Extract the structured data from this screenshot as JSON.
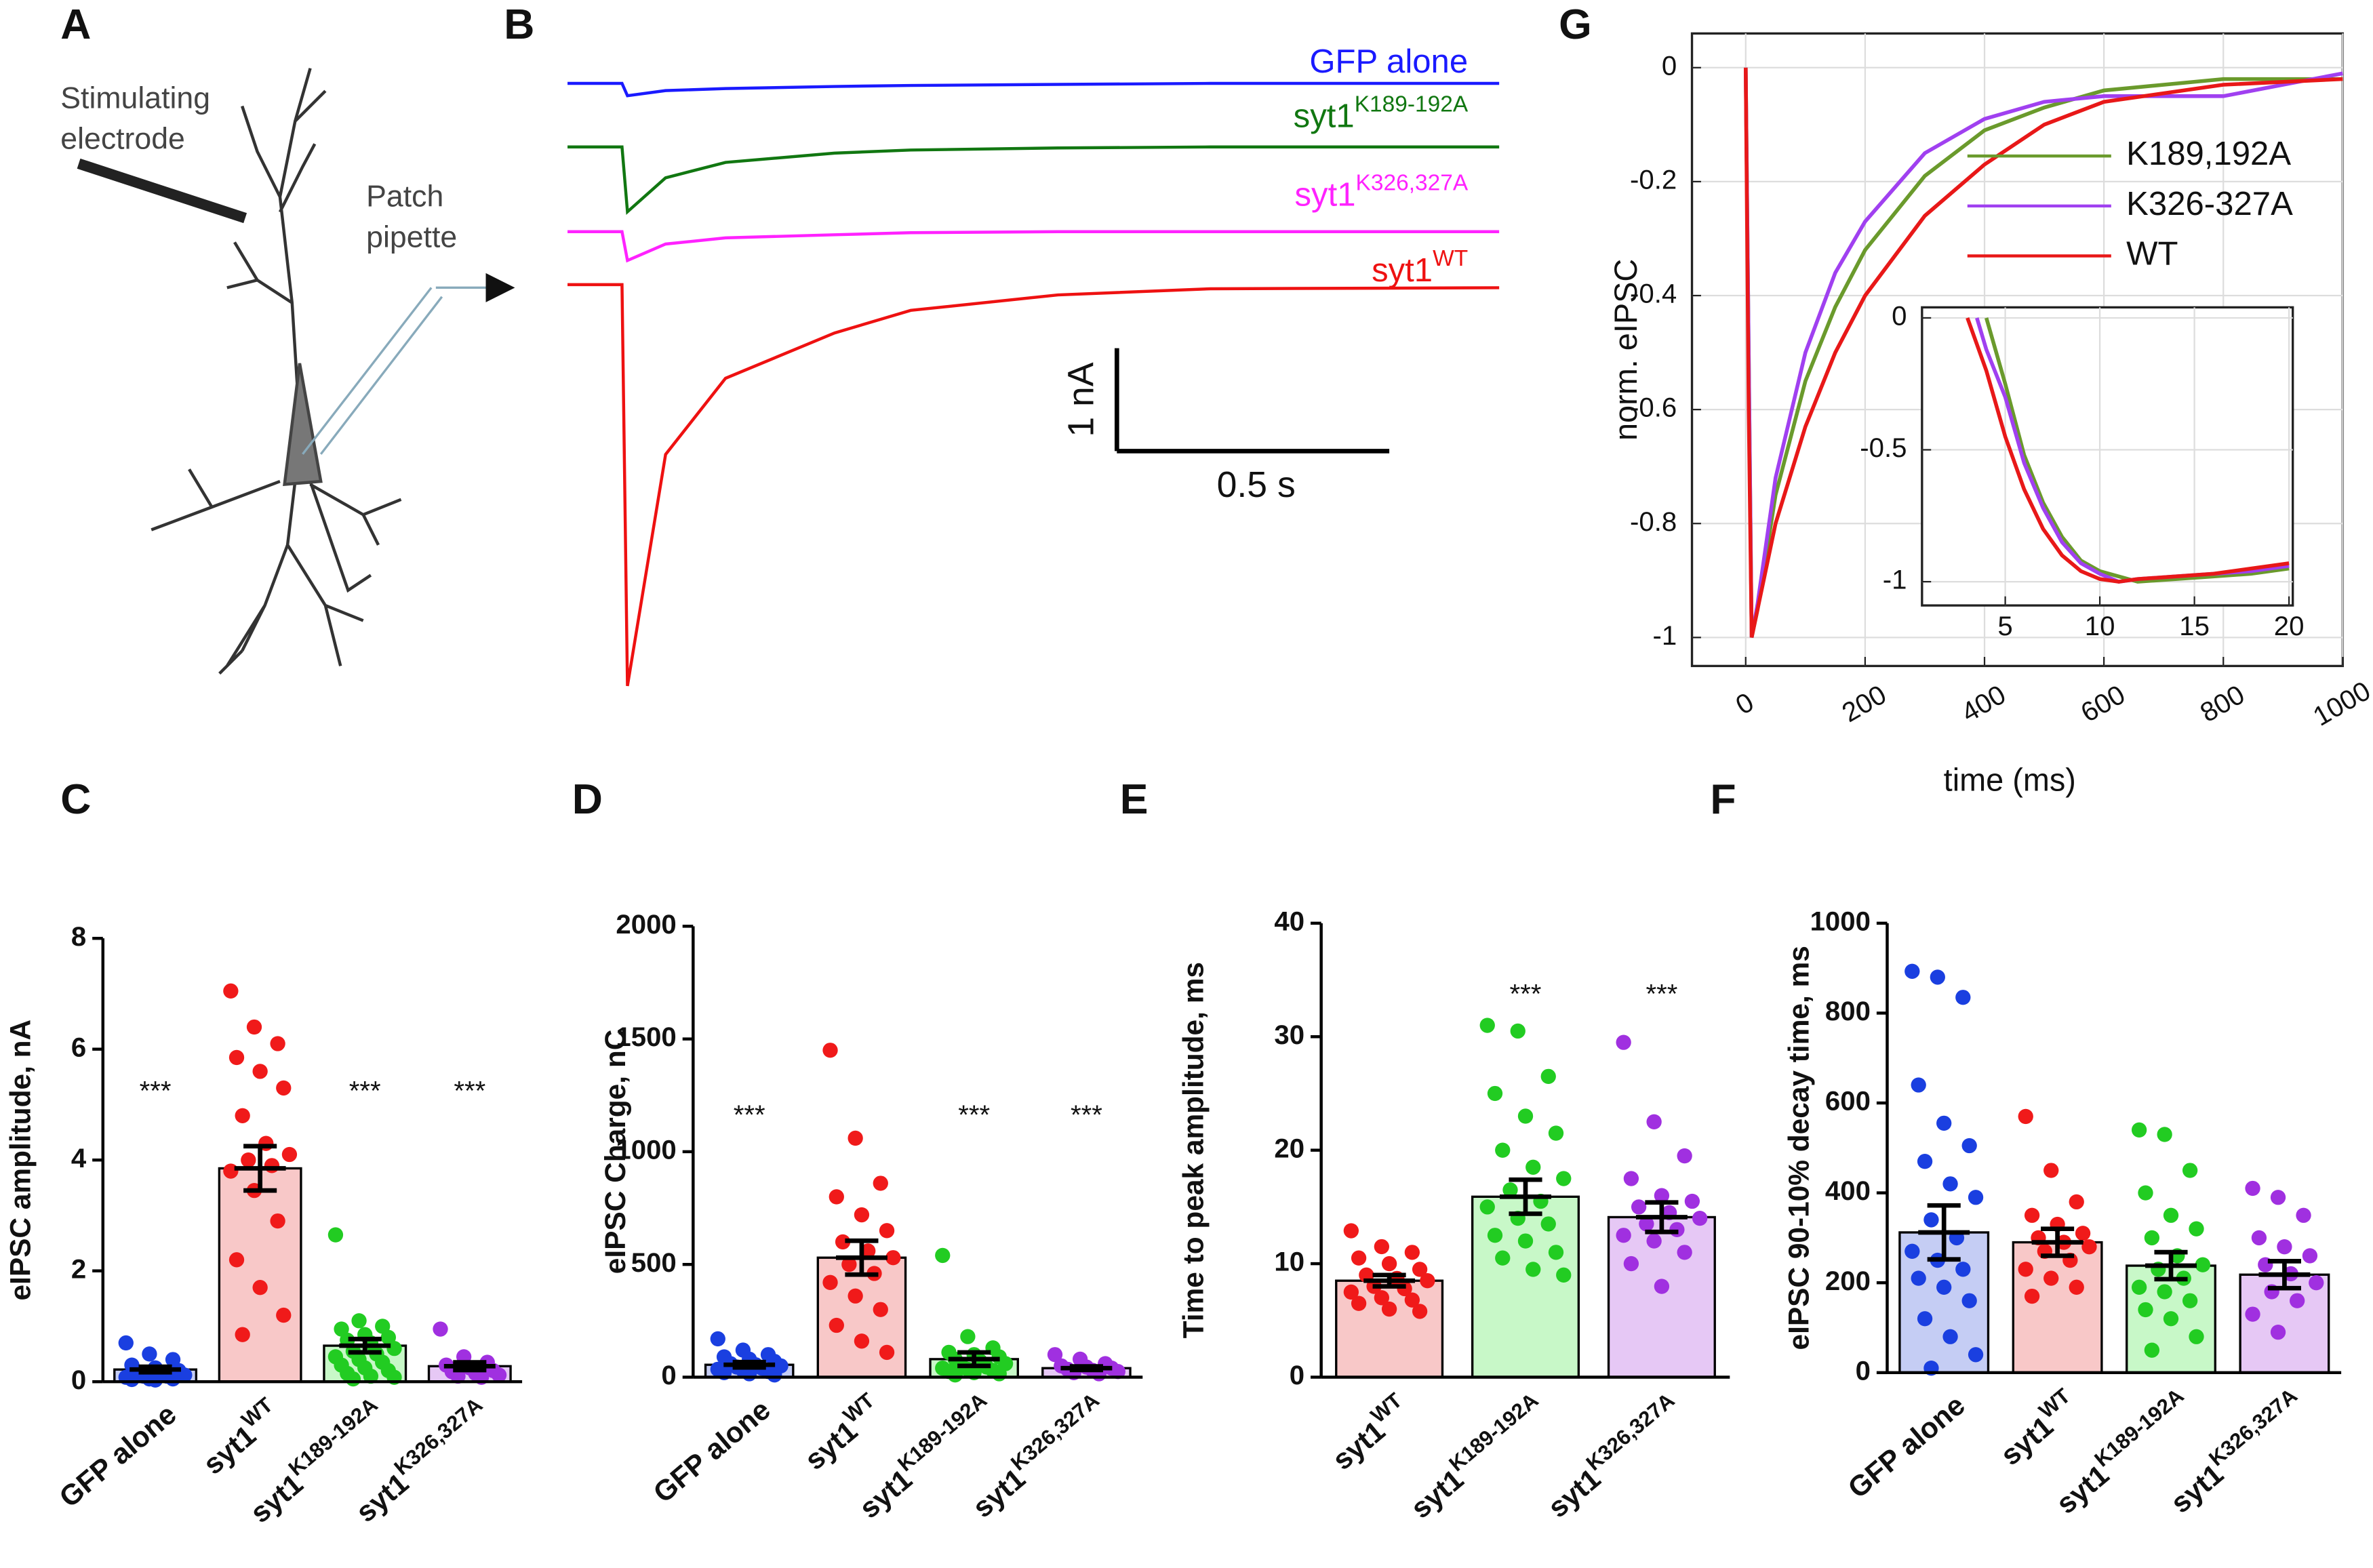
{
  "panel_labels": [
    "A",
    "B",
    "C",
    "D",
    "E",
    "F",
    "G"
  ],
  "diagram": {
    "stimulating_label": [
      "Stimulating",
      "electrode"
    ],
    "pipette_label": [
      "Patch",
      "pipette"
    ]
  },
  "chart_data": [
    {
      "type": "trace",
      "x": [
        0,
        0.1,
        0.11,
        0.18,
        0.29,
        0.49,
        0.63,
        0.9,
        1.18,
        1.71
      ],
      "series": [
        {
          "name": "GFP alone",
          "color": "#1a1aff",
          "values": [
            0,
            0,
            -0.12,
            -0.07,
            -0.05,
            -0.03,
            -0.02,
            -0.01,
            0,
            0
          ]
        },
        {
          "name": "syt1",
          "name_sup": "K189-192A",
          "color": "#117711",
          "values": [
            0,
            0,
            -0.63,
            -0.3,
            -0.15,
            -0.06,
            -0.03,
            -0.01,
            0,
            0
          ]
        },
        {
          "name": "syt1",
          "name_sup": "K326,327A",
          "color": "#ff22ff",
          "values": [
            0,
            0,
            -0.28,
            -0.12,
            -0.06,
            -0.03,
            -0.01,
            0,
            0,
            0
          ]
        },
        {
          "name": "syt1",
          "name_sup": "WT",
          "color": "#ee1111",
          "values": [
            0,
            0,
            -3.9,
            -1.65,
            -0.91,
            -0.47,
            -0.25,
            -0.1,
            -0.04,
            -0.03
          ]
        }
      ],
      "scale_bar": {
        "y_value": 1,
        "y_label": "1 nA",
        "x_value": 0.5,
        "x_label": "0.5 s"
      }
    },
    {
      "type": "line",
      "xlabel": "time (ms)",
      "ylabel": "norm. eIPSC",
      "xlim": [
        -90,
        1000
      ],
      "ylim": [
        -1.05,
        0.06
      ],
      "xticks": [
        0,
        200,
        400,
        600,
        800,
        1000
      ],
      "yticks": [
        -1,
        -0.8,
        -0.6,
        -0.4,
        -0.2,
        0
      ],
      "grid": true,
      "legend": "upper right",
      "x": [
        0,
        5,
        10,
        20,
        50,
        100,
        150,
        200,
        300,
        400,
        500,
        600,
        800,
        1000
      ],
      "series": [
        {
          "name": "K189,192A",
          "color": "#6a9a2c",
          "values": [
            0,
            -0.5,
            -1,
            -0.95,
            -0.75,
            -0.55,
            -0.42,
            -0.32,
            -0.19,
            -0.11,
            -0.07,
            -0.04,
            -0.02,
            -0.02
          ]
        },
        {
          "name": "K326-327A",
          "color": "#a040f0",
          "values": [
            0,
            -0.5,
            -1,
            -0.94,
            -0.72,
            -0.5,
            -0.36,
            -0.27,
            -0.15,
            -0.09,
            -0.06,
            -0.05,
            -0.05,
            -0.01
          ]
        },
        {
          "name": "WT",
          "color": "#e81818",
          "values": [
            0,
            -0.6,
            -1,
            -0.95,
            -0.8,
            -0.63,
            -0.5,
            -0.4,
            -0.26,
            -0.17,
            -0.1,
            -0.06,
            -0.03,
            -0.02
          ]
        }
      ]
    },
    {
      "type": "line",
      "xlim": [
        0.6,
        20.2
      ],
      "ylim": [
        -1.09,
        0.04
      ],
      "xticks": [
        5,
        10,
        15,
        20
      ],
      "yticks": [
        -1,
        -0.5,
        0
      ],
      "grid": true,
      "x": [
        3,
        3.5,
        4,
        5,
        6,
        7,
        8,
        9,
        10,
        11,
        12,
        14,
        16,
        18,
        20
      ],
      "series": [
        {
          "color": "#6a9a2c",
          "values": [
            null,
            null,
            0,
            -0.25,
            -0.52,
            -0.7,
            -0.83,
            -0.92,
            -0.96,
            -0.98,
            -1,
            -0.99,
            -0.98,
            -0.97,
            -0.95
          ]
        },
        {
          "color": "#a040f0",
          "values": [
            null,
            0,
            -0.12,
            -0.3,
            -0.55,
            -0.72,
            -0.85,
            -0.93,
            -0.97,
            -1,
            -0.99,
            -0.98,
            -0.97,
            -0.96,
            -0.94
          ]
        },
        {
          "color": "#e81818",
          "values": [
            0,
            -0.1,
            -0.2,
            -0.45,
            -0.65,
            -0.8,
            -0.9,
            -0.96,
            -0.99,
            -1,
            -0.99,
            -0.98,
            -0.97,
            -0.95,
            -0.93
          ]
        }
      ]
    },
    {
      "type": "bar",
      "ylabel": "eIPSC amplitude, nA",
      "ylim": [
        0,
        8
      ],
      "yticks": [
        0,
        2,
        4,
        6,
        8
      ],
      "categories": [
        {
          "text": "GFP alone"
        },
        {
          "text": "syt1",
          "sup": "WT"
        },
        {
          "text": "syt1",
          "sup": "K189-192A"
        },
        {
          "text": "syt1",
          "sup": "K326,327A"
        }
      ],
      "colors": [
        "#1a3fe0",
        "#f01a1a",
        "#22cc22",
        "#a030e0"
      ],
      "fill_colors": [
        "#c5cdf4",
        "#f8c8c8",
        "#c8f8c8",
        "#e6c8f5"
      ],
      "values": [
        0.22,
        3.85,
        0.65,
        0.28
      ],
      "errors": [
        0.05,
        0.4,
        0.12,
        0.07
      ],
      "points": [
        [
          0.7,
          0.5,
          0.4,
          0.3,
          0.25,
          0.2,
          0.18,
          0.15,
          0.12,
          0.1,
          0.1,
          0.08,
          0.05,
          0.05,
          0.04,
          0.03
        ],
        [
          7.05,
          6.4,
          6.1,
          5.85,
          5.6,
          5.3,
          4.8,
          4.3,
          4.1,
          4.0,
          3.9,
          3.8,
          3.45,
          2.9,
          2.2,
          1.7,
          1.2,
          0.85
        ],
        [
          2.65,
          1.1,
          1.0,
          0.95,
          0.85,
          0.8,
          0.75,
          0.7,
          0.6,
          0.55,
          0.5,
          0.45,
          0.4,
          0.35,
          0.3,
          0.25,
          0.2,
          0.15,
          0.1,
          0.08,
          0.05
        ],
        [
          0.95,
          0.45,
          0.35,
          0.3,
          0.25,
          0.2,
          0.18,
          0.15,
          0.12,
          0.1,
          0.08
        ]
      ],
      "significance": [
        "***",
        null,
        "***",
        "***"
      ]
    },
    {
      "type": "bar",
      "ylabel": "eIPSC Charge, nC",
      "ylim": [
        0,
        2000
      ],
      "yticks": [
        0,
        500,
        1000,
        1500,
        2000
      ],
      "categories": [
        {
          "text": "GFP alone"
        },
        {
          "text": "syt1",
          "sup": "WT"
        },
        {
          "text": "syt1",
          "sup": "K189-192A"
        },
        {
          "text": "syt1",
          "sup": "K326,327A"
        }
      ],
      "colors": [
        "#1a3fe0",
        "#f01a1a",
        "#22cc22",
        "#a030e0"
      ],
      "fill_colors": [
        "#c5cdf4",
        "#f8c8c8",
        "#c8f8c8",
        "#e6c8f5"
      ],
      "values": [
        55,
        530,
        80,
        40
      ],
      "errors": [
        12,
        75,
        30,
        8
      ],
      "points": [
        [
          170,
          120,
          100,
          90,
          80,
          70,
          60,
          55,
          50,
          45,
          40,
          35,
          30,
          25,
          20,
          15,
          10
        ],
        [
          1450,
          1060,
          860,
          800,
          720,
          650,
          600,
          560,
          530,
          500,
          460,
          420,
          360,
          300,
          230,
          160,
          110
        ],
        [
          540,
          180,
          130,
          110,
          100,
          90,
          80,
          70,
          60,
          50,
          45,
          40,
          35,
          30,
          25,
          20,
          15,
          10
        ],
        [
          100,
          80,
          60,
          50,
          45,
          40,
          35,
          30,
          25,
          20,
          15
        ]
      ],
      "significance": [
        "***",
        null,
        "***",
        "***"
      ]
    },
    {
      "type": "bar",
      "ylabel": "Time to peak amplitude, ms",
      "ylim": [
        0,
        40
      ],
      "yticks": [
        0,
        10,
        20,
        30,
        40
      ],
      "categories": [
        {
          "text": "syt1",
          "sup": "WT"
        },
        {
          "text": "syt1",
          "sup": "K189-192A"
        },
        {
          "text": "syt1",
          "sup": "K326,327A"
        }
      ],
      "colors": [
        "#f01a1a",
        "#22cc22",
        "#a030e0"
      ],
      "fill_colors": [
        "#f8c8c8",
        "#c8f8c8",
        "#e6c8f5"
      ],
      "values": [
        8.5,
        15.9,
        14.1
      ],
      "errors": [
        0.5,
        1.5,
        1.3
      ],
      "points": [
        [
          12.9,
          11.5,
          11,
          10.5,
          10,
          9.5,
          9,
          8.7,
          8.5,
          8,
          7.8,
          7.5,
          7,
          6.8,
          6.5,
          6,
          5.8
        ],
        [
          31,
          30.5,
          26.5,
          25,
          23,
          21.5,
          20,
          18.5,
          17.5,
          16.5,
          15.5,
          15,
          14,
          13.5,
          12.5,
          12,
          11,
          10.5,
          9.5,
          9
        ],
        [
          29.5,
          22.5,
          19.5,
          17.5,
          16,
          15.5,
          15,
          14.5,
          14,
          13.5,
          13,
          12.5,
          12,
          11,
          10,
          8
        ]
      ],
      "significance": [
        null,
        "***",
        "***"
      ]
    },
    {
      "type": "bar",
      "ylabel": "eIPSC 90-10% decay time, ms",
      "ylim": [
        0,
        1000
      ],
      "yticks": [
        0,
        200,
        400,
        600,
        800,
        1000
      ],
      "categories": [
        {
          "text": "GFP alone"
        },
        {
          "text": "syt1",
          "sup": "WT"
        },
        {
          "text": "syt1",
          "sup": "K189-192A"
        },
        {
          "text": "syt1",
          "sup": "K326,327A"
        }
      ],
      "colors": [
        "#1a3fe0",
        "#f01a1a",
        "#22cc22",
        "#a030e0"
      ],
      "fill_colors": [
        "#c5cdf4",
        "#f8c8c8",
        "#c8f8c8",
        "#e6c8f5"
      ],
      "values": [
        312,
        290,
        238,
        218
      ],
      "errors": [
        60,
        30,
        30,
        30
      ],
      "points": [
        [
          893,
          880,
          835,
          640,
          555,
          505,
          470,
          420,
          390,
          340,
          300,
          270,
          250,
          230,
          210,
          190,
          160,
          120,
          80,
          40,
          10
        ],
        [
          570,
          450,
          380,
          350,
          330,
          310,
          300,
          290,
          280,
          270,
          250,
          230,
          210,
          190,
          170
        ],
        [
          540,
          530,
          450,
          400,
          350,
          320,
          300,
          260,
          240,
          230,
          210,
          190,
          180,
          160,
          140,
          120,
          80,
          50
        ],
        [
          410,
          390,
          350,
          300,
          280,
          260,
          240,
          220,
          200,
          180,
          160,
          130,
          90
        ]
      ]
    }
  ]
}
